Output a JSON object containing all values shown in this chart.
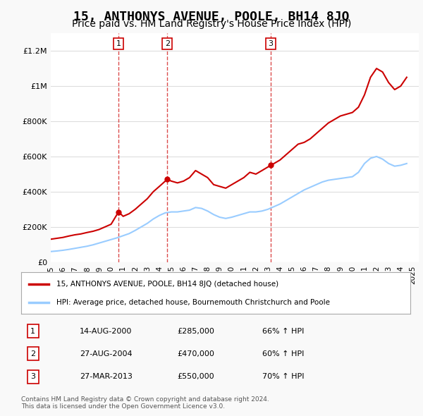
{
  "title": "15, ANTHONYS AVENUE, POOLE, BH14 8JQ",
  "subtitle": "Price paid vs. HM Land Registry's House Price Index (HPI)",
  "title_fontsize": 13,
  "subtitle_fontsize": 10,
  "ylim": [
    0,
    1300000
  ],
  "xlim_start": 1995.0,
  "xlim_end": 2025.5,
  "yticks": [
    0,
    200000,
    400000,
    600000,
    800000,
    1000000,
    1200000
  ],
  "ytick_labels": [
    "£0",
    "£200K",
    "£400K",
    "£600K",
    "£800K",
    "£1M",
    "£1.2M"
  ],
  "background_color": "#f9f9f9",
  "plot_bg_color": "#ffffff",
  "red_line_color": "#cc0000",
  "blue_line_color": "#99ccff",
  "grid_color": "#dddddd",
  "transactions": [
    {
      "label": "1",
      "date": 2000.617,
      "price": 285000,
      "hpi_pct": "66%",
      "date_str": "14-AUG-2000",
      "price_str": "£285,000"
    },
    {
      "label": "2",
      "date": 2004.653,
      "price": 470000,
      "hpi_pct": "60%",
      "date_str": "27-AUG-2004",
      "price_str": "£470,000"
    },
    {
      "label": "3",
      "date": 2013.233,
      "price": 550000,
      "hpi_pct": "70%",
      "date_str": "27-MAR-2013",
      "price_str": "£550,000"
    }
  ],
  "red_x": [
    1995.0,
    1995.5,
    1996.0,
    1996.5,
    1997.0,
    1997.5,
    1998.0,
    1998.5,
    1999.0,
    1999.5,
    2000.0,
    2000.617,
    2001.0,
    2001.5,
    2002.0,
    2002.5,
    2003.0,
    2003.5,
    2004.0,
    2004.653,
    2005.0,
    2005.5,
    2006.0,
    2006.5,
    2007.0,
    2007.5,
    2008.0,
    2008.5,
    2009.0,
    2009.5,
    2010.0,
    2010.5,
    2011.0,
    2011.5,
    2012.0,
    2012.5,
    2013.233,
    2013.5,
    2014.0,
    2014.5,
    2015.0,
    2015.5,
    2016.0,
    2016.5,
    2017.0,
    2017.5,
    2018.0,
    2018.5,
    2019.0,
    2019.5,
    2020.0,
    2020.5,
    2021.0,
    2021.5,
    2022.0,
    2022.5,
    2023.0,
    2023.5,
    2024.0,
    2024.5
  ],
  "red_y": [
    130000,
    135000,
    140000,
    148000,
    155000,
    160000,
    168000,
    175000,
    185000,
    200000,
    215000,
    285000,
    260000,
    275000,
    300000,
    330000,
    360000,
    400000,
    430000,
    470000,
    460000,
    450000,
    460000,
    480000,
    520000,
    500000,
    480000,
    440000,
    430000,
    420000,
    440000,
    460000,
    480000,
    510000,
    500000,
    520000,
    550000,
    560000,
    580000,
    610000,
    640000,
    670000,
    680000,
    700000,
    730000,
    760000,
    790000,
    810000,
    830000,
    840000,
    850000,
    880000,
    950000,
    1050000,
    1100000,
    1080000,
    1020000,
    980000,
    1000000,
    1050000
  ],
  "blue_x": [
    1995.0,
    1995.5,
    1996.0,
    1996.5,
    1997.0,
    1997.5,
    1998.0,
    1998.5,
    1999.0,
    1999.5,
    2000.0,
    2000.5,
    2001.0,
    2001.5,
    2002.0,
    2002.5,
    2003.0,
    2003.5,
    2004.0,
    2004.5,
    2005.0,
    2005.5,
    2006.0,
    2006.5,
    2007.0,
    2007.5,
    2008.0,
    2008.5,
    2009.0,
    2009.5,
    2010.0,
    2010.5,
    2011.0,
    2011.5,
    2012.0,
    2012.5,
    2013.0,
    2013.5,
    2014.0,
    2014.5,
    2015.0,
    2015.5,
    2016.0,
    2016.5,
    2017.0,
    2017.5,
    2018.0,
    2018.5,
    2019.0,
    2019.5,
    2020.0,
    2020.5,
    2021.0,
    2021.5,
    2022.0,
    2022.5,
    2023.0,
    2023.5,
    2024.0,
    2024.5
  ],
  "blue_y": [
    60000,
    63000,
    67000,
    72000,
    78000,
    84000,
    90000,
    98000,
    108000,
    118000,
    128000,
    138000,
    150000,
    162000,
    180000,
    200000,
    220000,
    245000,
    265000,
    280000,
    285000,
    285000,
    290000,
    295000,
    310000,
    305000,
    290000,
    270000,
    255000,
    248000,
    255000,
    265000,
    275000,
    285000,
    285000,
    290000,
    300000,
    315000,
    330000,
    350000,
    370000,
    390000,
    410000,
    425000,
    440000,
    455000,
    465000,
    470000,
    475000,
    480000,
    485000,
    510000,
    560000,
    590000,
    600000,
    585000,
    560000,
    545000,
    550000,
    560000
  ],
  "legend_label_red": "15, ANTHONYS AVENUE, POOLE, BH14 8JQ (detached house)",
  "legend_label_blue": "HPI: Average price, detached house, Bournemouth Christchurch and Poole",
  "footer": "Contains HM Land Registry data © Crown copyright and database right 2024.\nThis data is licensed under the Open Government Licence v3.0.",
  "xticks": [
    1995,
    1996,
    1997,
    1998,
    1999,
    2000,
    2001,
    2002,
    2003,
    2004,
    2005,
    2006,
    2007,
    2008,
    2009,
    2010,
    2011,
    2012,
    2013,
    2014,
    2015,
    2016,
    2017,
    2018,
    2019,
    2020,
    2021,
    2022,
    2023,
    2024,
    2025
  ]
}
